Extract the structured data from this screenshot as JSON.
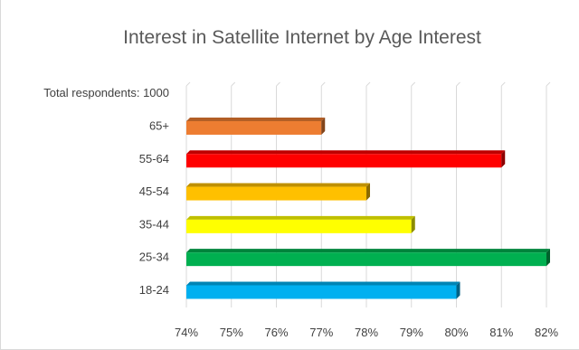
{
  "chart_data": {
    "type": "bar",
    "orientation": "horizontal",
    "title": "Interest in Satellite Internet by Age Interest",
    "xlabel": "",
    "ylabel": "",
    "xlim": [
      0.74,
      0.82
    ],
    "x_ticks": [
      0.74,
      0.75,
      0.76,
      0.77,
      0.78,
      0.79,
      0.8,
      0.81,
      0.82
    ],
    "x_tick_labels": [
      "74%",
      "75%",
      "76%",
      "77%",
      "78%",
      "79%",
      "80%",
      "81%",
      "82%"
    ],
    "grid": "vertical",
    "categories": [
      "Total respondents: 1000",
      "65+",
      "55-64",
      "45-54",
      "35-44",
      "25-34",
      "18-24"
    ],
    "values": [
      null,
      0.77,
      0.81,
      0.78,
      0.79,
      0.82,
      0.8
    ],
    "colors": [
      "#bfbfbf",
      "#ed7d31",
      "#ff0000",
      "#ffc000",
      "#ffff00",
      "#00b050",
      "#00b0f0"
    ]
  }
}
